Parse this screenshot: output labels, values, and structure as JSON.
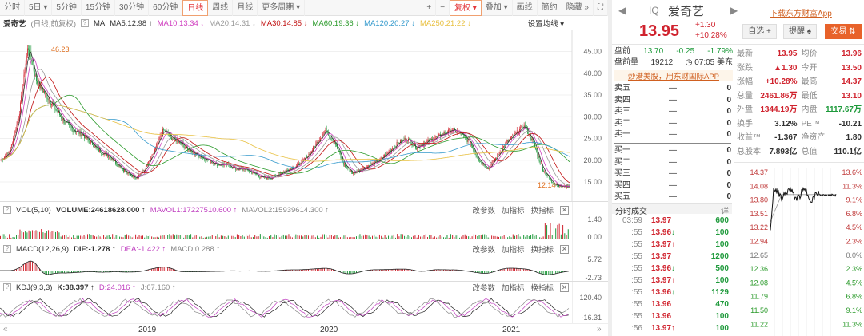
{
  "toolbar": {
    "items": [
      "分时",
      "5日 ▾",
      "5分钟",
      "15分钟",
      "30分钟",
      "60分钟",
      "日线",
      "周线",
      "月线",
      "更多周期 ▾"
    ],
    "active": "日线",
    "right": [
      "+",
      "−",
      "复权 ▾",
      "叠加 ▾",
      "画线",
      "简约",
      "隐藏 »",
      "⛶"
    ]
  },
  "ma": {
    "title": "爱奇艺",
    "subtitle": "(日线,前复权)",
    "help": "?",
    "label": "MA",
    "items": [
      {
        "text": "MA5:12.98 ↑",
        "color": "#333333"
      },
      {
        "text": "MA10:13.34 ↓",
        "color": "#d040c0"
      },
      {
        "text": "MA20:14.31 ↓",
        "color": "#999999"
      },
      {
        "text": "MA30:14.85 ↓",
        "color": "#c01010"
      },
      {
        "text": "MA60:19.36 ↓",
        "color": "#2a9a2a"
      },
      {
        "text": "MA120:20.27 ↓",
        "color": "#3399cc"
      },
      {
        "text": "MA250:21.22 ↓",
        "color": "#e8c040"
      }
    ],
    "settings": "设置均线 ▾"
  },
  "chart_data": {
    "type": "candlestick",
    "price_axis": [
      "45.00",
      "40.00",
      "35.00",
      "30.00",
      "25.00",
      "20.00",
      "15.00"
    ],
    "ylim": [
      15,
      45
    ],
    "high_label": "46.23",
    "low_label": "12.14",
    "x_ticks": [
      "2019",
      "2020",
      "2021"
    ],
    "close_series": [
      20,
      22,
      30,
      46.2,
      38,
      35,
      32,
      29,
      27,
      26,
      24,
      22,
      21,
      19,
      17,
      16,
      18,
      22,
      27,
      25,
      24,
      22,
      21,
      20,
      19,
      19,
      18,
      18,
      17,
      16,
      16,
      17,
      18,
      19,
      21,
      24,
      27,
      24,
      19,
      17,
      18,
      19,
      20,
      22,
      24,
      25,
      23,
      24,
      25,
      26,
      27,
      26,
      24,
      20,
      18,
      21,
      24,
      26,
      28,
      24,
      18,
      15,
      14,
      13.95
    ]
  },
  "vol": {
    "help": "?",
    "name": "VOL(5,10)",
    "volume": "VOLUME:24618628.000 ↑",
    "mavol1": "MAVOL1:17227510.600 ↑",
    "mavol2": "MAVOL2:15939614.300 ↑",
    "axis": [
      "1.40",
      "0.00"
    ]
  },
  "macd": {
    "help": "?",
    "name": "MACD(12,26,9)",
    "dif": "DIF:-1.278 ↑",
    "dea": "DEA:-1.422 ↑",
    "macd": "MACD:0.288 ↑",
    "axis": [
      "5.72",
      "-2.73"
    ]
  },
  "kdj": {
    "help": "?",
    "name": "KDJ(9,3,3)",
    "k": "K:38.397 ↑",
    "d": "D:24.016 ↑",
    "j": "J:67.160 ↑",
    "axis": [
      "120.40",
      "-16.31"
    ]
  },
  "panel_buttons": {
    "params": "改参数",
    "add": "加指标",
    "swap": "换指标",
    "close": "✕"
  },
  "nav": {
    "left": "«",
    "right": "»"
  },
  "quote": {
    "code": "IQ",
    "name": "爱奇艺",
    "price": "13.95",
    "change": "+1.30",
    "pct": "+10.28%",
    "download": "下载东方财富App",
    "buttons": {
      "watch": "自选 +",
      "remind": "提醒 ♠",
      "trade": "交易 ⇅"
    },
    "pre": {
      "label": "盘前",
      "price": "13.70",
      "chg": "-0.25",
      "pct": "-1.79%",
      "vol_label": "盘前量",
      "vol": "19212",
      "time": "◷ 07:05 美东"
    },
    "promo": "炒港美股，用东财国际APP"
  },
  "book": {
    "sell": [
      {
        "l": "卖五",
        "p": "—",
        "v": "0"
      },
      {
        "l": "卖四",
        "p": "—",
        "v": "0"
      },
      {
        "l": "卖三",
        "p": "—",
        "v": "0"
      },
      {
        "l": "卖二",
        "p": "—",
        "v": "0"
      },
      {
        "l": "卖一",
        "p": "—",
        "v": "0"
      }
    ],
    "buy": [
      {
        "l": "买一",
        "p": "—",
        "v": "0"
      },
      {
        "l": "买二",
        "p": "—",
        "v": "0"
      },
      {
        "l": "买三",
        "p": "—",
        "v": "0"
      },
      {
        "l": "买四",
        "p": "—",
        "v": "0"
      },
      {
        "l": "买五",
        "p": "—",
        "v": "0"
      }
    ]
  },
  "trades": {
    "title": "分时成交",
    "detail": "详",
    "rows": [
      {
        "t": "03:59",
        "p": "13.97",
        "a": "",
        "v": "600"
      },
      {
        "t": ":55",
        "p": "13.96",
        "a": "↓",
        "v": "100"
      },
      {
        "t": ":55",
        "p": "13.97",
        "a": "↑",
        "v": "100"
      },
      {
        "t": ":55",
        "p": "13.97",
        "a": "",
        "v": "1200"
      },
      {
        "t": ":55",
        "p": "13.96",
        "a": "↓",
        "v": "500"
      },
      {
        "t": ":55",
        "p": "13.97",
        "a": "↑",
        "v": "100"
      },
      {
        "t": ":55",
        "p": "13.96",
        "a": "↓",
        "v": "1129"
      },
      {
        "t": ":55",
        "p": "13.96",
        "a": "",
        "v": "470"
      },
      {
        "t": ":55",
        "p": "13.96",
        "a": "",
        "v": "100"
      },
      {
        "t": ":56",
        "p": "13.97",
        "a": "↑",
        "v": "100"
      }
    ]
  },
  "stats": [
    [
      "最新",
      "13.95",
      "均价",
      "13.96"
    ],
    [
      "涨跌",
      "▲1.30",
      "今开",
      "13.50"
    ],
    [
      "涨幅",
      "+10.28%",
      "最高",
      "14.37"
    ],
    [
      "总量",
      "2461.86万",
      "最低",
      "13.10"
    ],
    [
      "外盘",
      "1344.19万",
      "内盘",
      "1117.67万"
    ],
    [
      "换手",
      "3.12%",
      "PE™",
      "-10.21"
    ],
    [
      "收益™",
      "-1.367",
      "净资产",
      "1.80"
    ],
    [
      "总股本",
      "7.893亿",
      "总值",
      "110.1亿"
    ]
  ],
  "intraday": {
    "prices": [
      "14.37",
      "14.08",
      "13.80",
      "13.51",
      "13.22",
      "12.94",
      "12.65",
      "12.36",
      "12.08",
      "11.79",
      "11.50",
      "11.22"
    ],
    "pcts": [
      "13.6%",
      "11.3%",
      "9.1%",
      "6.8%",
      "4.5%",
      "2.3%",
      "0.0%",
      "2.3%",
      "4.5%",
      "6.8%",
      "9.1%",
      "11.3%"
    ]
  },
  "colors": {
    "up": "#d0232e",
    "down": "#1e9a3b",
    "accent": "#e8622a"
  }
}
